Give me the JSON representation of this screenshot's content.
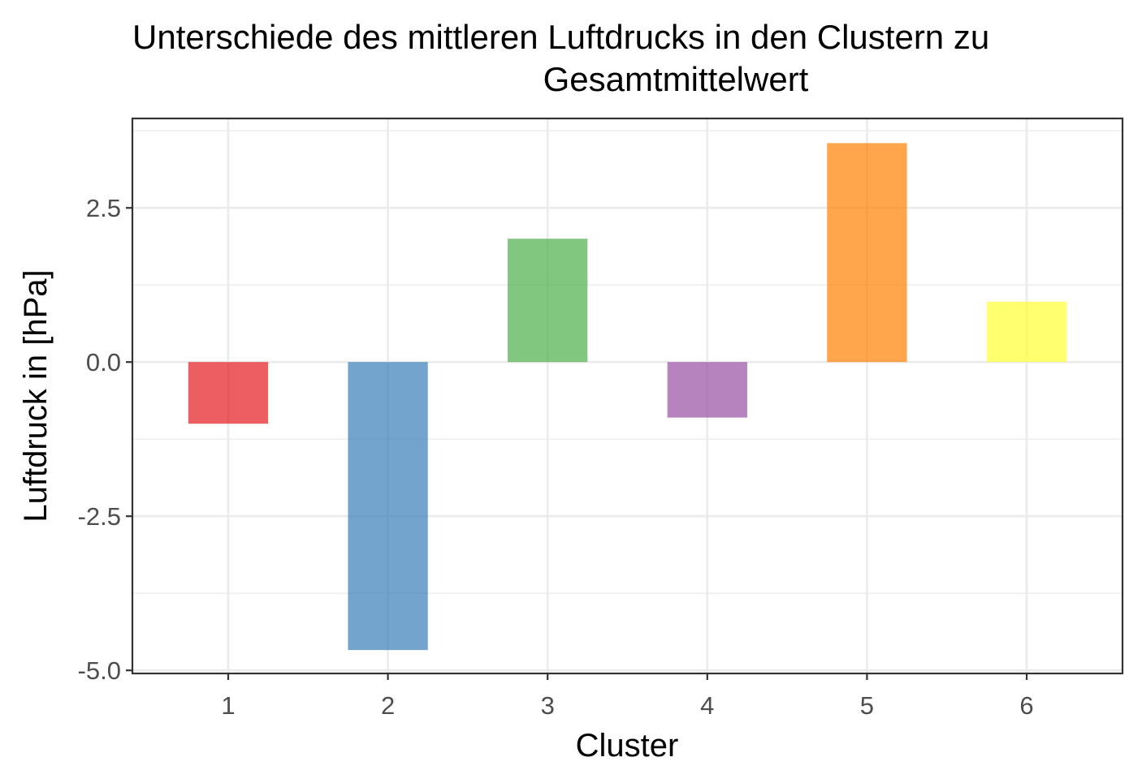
{
  "chart_data": {
    "type": "bar",
    "title": "Unterschiede des mittleren Luftdrucks in den Clustern zu",
    "subtitle": "Gesamtmittelwert",
    "xlabel": "Cluster",
    "ylabel": "Luftdruck in [hPa]",
    "categories": [
      "1",
      "2",
      "3",
      "4",
      "5",
      "6"
    ],
    "values": [
      -1.0,
      -4.67,
      2.0,
      -0.9,
      3.55,
      0.98
    ],
    "colors": [
      "#E41A1C",
      "#377EB8",
      "#4DAF4A",
      "#984EA3",
      "#FF7F00",
      "#FFFF33"
    ],
    "bar_opacity": 0.7,
    "ylim": [
      -5.05,
      3.95
    ],
    "yticks": [
      -5.0,
      -2.5,
      0.0,
      2.5
    ],
    "ytick_labels": [
      "-5.0",
      "-2.5",
      "0.0",
      "2.5"
    ],
    "grid": true,
    "legend": "none"
  }
}
